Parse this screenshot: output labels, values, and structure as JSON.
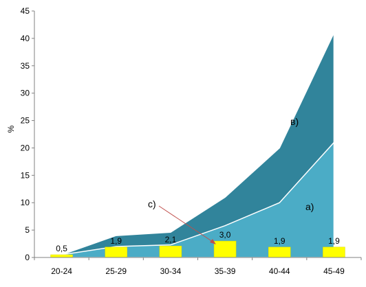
{
  "chart_data": {
    "type": "area",
    "categories": [
      "20-24",
      "25-29",
      "30-34",
      "35-39",
      "40-44",
      "45-49"
    ],
    "ylabel": "%",
    "ylim": [
      0,
      45
    ],
    "yticks": [
      "0",
      "5",
      "10",
      "15",
      "20",
      "25",
      "30",
      "35",
      "40",
      "45"
    ],
    "grid": false,
    "series": [
      {
        "values": [
          0.5,
          2,
          2.3,
          5.8,
          10,
          21
        ],
        "color": "#4bacc6"
      },
      {
        "values": [
          0.5,
          4,
          4.6,
          11,
          20,
          41
        ],
        "color": "#31849b"
      },
      {
        "values": [
          0.5,
          1.9,
          2.1,
          3.0,
          1.9,
          1.9
        ],
        "color": "#ffff00"
      }
    ],
    "bar_labels": [
      "0,5",
      "1,9",
      "2,1",
      "3,0",
      "1,9",
      "1,9"
    ],
    "annotations": {
      "a": "а)",
      "b": "в)",
      "c": "с)"
    }
  }
}
